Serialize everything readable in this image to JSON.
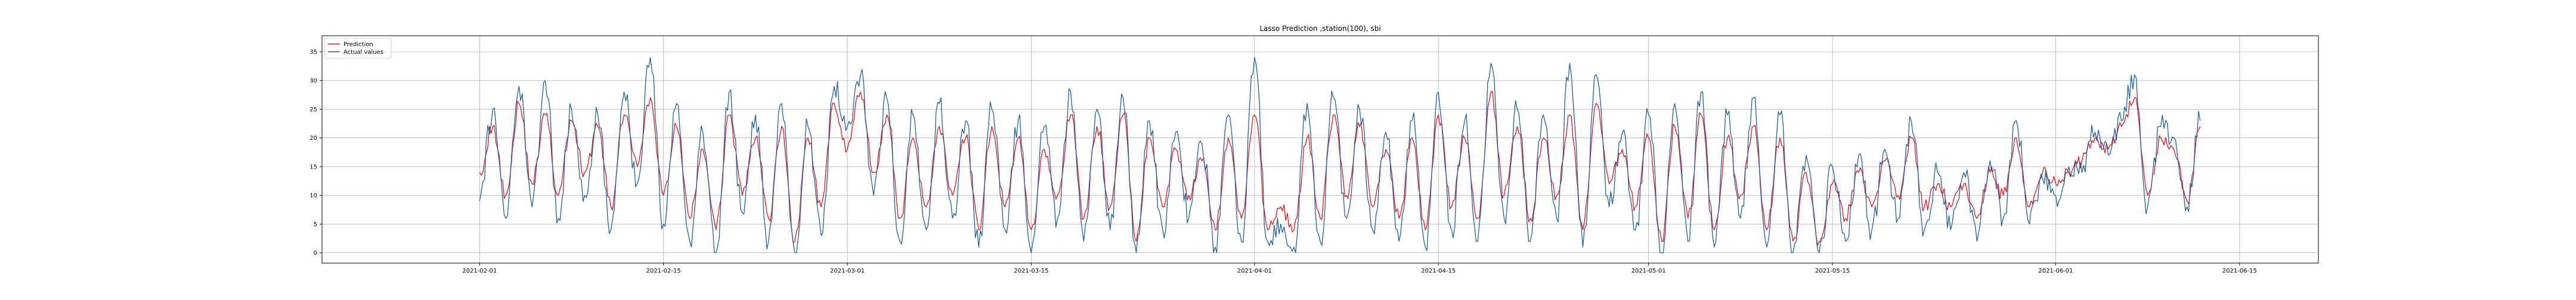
{
  "chart_data": {
    "type": "line",
    "title": "Lasso Prediction ,station(100), sbi",
    "xlabel": "",
    "ylabel": "",
    "x_range": [
      "2021-01-20",
      "2021-06-21"
    ],
    "x_ticks": [
      "2021-02-01",
      "2021-02-15",
      "2021-03-01",
      "2021-03-15",
      "2021-04-01",
      "2021-04-15",
      "2021-05-01",
      "2021-05-15",
      "2021-06-01",
      "2021-06-15"
    ],
    "ylim": [
      -1.8,
      37.8
    ],
    "y_ticks": [
      0,
      5,
      10,
      15,
      20,
      25,
      30,
      35
    ],
    "grid": true,
    "legend_position": "upper-left",
    "series": [
      {
        "name": "Prediction",
        "color": "#e8141b",
        "values": [
          [
            "2021-02-01",
            14
          ],
          [
            "2021-02-02",
            22
          ],
          [
            "2021-02-03",
            10
          ],
          [
            "2021-02-04",
            26
          ],
          [
            "2021-02-05",
            12
          ],
          [
            "2021-02-06",
            24
          ],
          [
            "2021-02-07",
            10
          ],
          [
            "2021-02-08",
            23
          ],
          [
            "2021-02-09",
            14
          ],
          [
            "2021-02-10",
            22
          ],
          [
            "2021-02-11",
            8
          ],
          [
            "2021-02-12",
            24
          ],
          [
            "2021-02-13",
            15
          ],
          [
            "2021-02-14",
            27
          ],
          [
            "2021-02-15",
            10
          ],
          [
            "2021-02-16",
            22
          ],
          [
            "2021-02-17",
            6
          ],
          [
            "2021-02-18",
            18
          ],
          [
            "2021-02-19",
            4
          ],
          [
            "2021-02-20",
            24
          ],
          [
            "2021-02-21",
            10
          ],
          [
            "2021-02-22",
            20
          ],
          [
            "2021-02-23",
            6
          ],
          [
            "2021-02-24",
            22
          ],
          [
            "2021-02-25",
            2
          ],
          [
            "2021-02-26",
            20
          ],
          [
            "2021-02-27",
            8
          ],
          [
            "2021-02-28",
            26
          ],
          [
            "2021-03-01",
            18
          ],
          [
            "2021-03-02",
            28
          ],
          [
            "2021-03-03",
            14
          ],
          [
            "2021-03-04",
            24
          ],
          [
            "2021-03-05",
            6
          ],
          [
            "2021-03-06",
            20
          ],
          [
            "2021-03-07",
            8
          ],
          [
            "2021-03-08",
            22
          ],
          [
            "2021-03-09",
            10
          ],
          [
            "2021-03-10",
            20
          ],
          [
            "2021-03-11",
            4
          ],
          [
            "2021-03-12",
            22
          ],
          [
            "2021-03-13",
            8
          ],
          [
            "2021-03-14",
            20
          ],
          [
            "2021-03-15",
            4
          ],
          [
            "2021-03-16",
            18
          ],
          [
            "2021-03-17",
            10
          ],
          [
            "2021-03-18",
            24
          ],
          [
            "2021-03-19",
            6
          ],
          [
            "2021-03-20",
            22
          ],
          [
            "2021-03-21",
            8
          ],
          [
            "2021-03-22",
            24
          ],
          [
            "2021-03-23",
            2
          ],
          [
            "2021-03-24",
            20
          ],
          [
            "2021-03-25",
            8
          ],
          [
            "2021-03-26",
            18
          ],
          [
            "2021-03-27",
            10
          ],
          [
            "2021-03-28",
            16
          ],
          [
            "2021-03-29",
            4
          ],
          [
            "2021-03-30",
            20
          ],
          [
            "2021-03-31",
            6
          ],
          [
            "2021-04-01",
            24
          ],
          [
            "2021-04-02",
            4
          ],
          [
            "2021-04-03",
            8
          ],
          [
            "2021-04-04",
            4
          ],
          [
            "2021-04-05",
            20
          ],
          [
            "2021-04-06",
            6
          ],
          [
            "2021-04-07",
            24
          ],
          [
            "2021-04-08",
            10
          ],
          [
            "2021-04-09",
            22
          ],
          [
            "2021-04-10",
            8
          ],
          [
            "2021-04-11",
            18
          ],
          [
            "2021-04-12",
            6
          ],
          [
            "2021-04-13",
            20
          ],
          [
            "2021-04-14",
            4
          ],
          [
            "2021-04-15",
            24
          ],
          [
            "2021-04-16",
            8
          ],
          [
            "2021-04-17",
            20
          ],
          [
            "2021-04-18",
            6
          ],
          [
            "2021-04-19",
            28
          ],
          [
            "2021-04-20",
            10
          ],
          [
            "2021-04-21",
            22
          ],
          [
            "2021-04-22",
            6
          ],
          [
            "2021-04-23",
            20
          ],
          [
            "2021-04-24",
            10
          ],
          [
            "2021-04-25",
            24
          ],
          [
            "2021-04-26",
            4
          ],
          [
            "2021-04-27",
            26
          ],
          [
            "2021-04-28",
            12
          ],
          [
            "2021-04-29",
            18
          ],
          [
            "2021-04-30",
            8
          ],
          [
            "2021-05-01",
            20
          ],
          [
            "2021-05-02",
            2
          ],
          [
            "2021-05-03",
            22
          ],
          [
            "2021-05-04",
            6
          ],
          [
            "2021-05-05",
            24
          ],
          [
            "2021-05-06",
            4
          ],
          [
            "2021-05-07",
            20
          ],
          [
            "2021-05-08",
            10
          ],
          [
            "2021-05-09",
            22
          ],
          [
            "2021-05-10",
            4
          ],
          [
            "2021-05-11",
            20
          ],
          [
            "2021-05-12",
            2
          ],
          [
            "2021-05-13",
            14
          ],
          [
            "2021-05-14",
            2
          ],
          [
            "2021-05-15",
            12
          ],
          [
            "2021-05-16",
            6
          ],
          [
            "2021-05-17",
            14
          ],
          [
            "2021-05-18",
            8
          ],
          [
            "2021-05-19",
            16
          ],
          [
            "2021-05-20",
            10
          ],
          [
            "2021-05-21",
            20
          ],
          [
            "2021-05-22",
            8
          ],
          [
            "2021-05-23",
            12
          ],
          [
            "2021-05-24",
            8
          ],
          [
            "2021-05-25",
            12
          ],
          [
            "2021-05-26",
            6
          ],
          [
            "2021-05-27",
            14
          ],
          [
            "2021-05-28",
            10
          ],
          [
            "2021-05-29",
            20
          ],
          [
            "2021-05-30",
            8
          ],
          [
            "2021-05-31",
            14
          ],
          [
            "2021-06-01",
            12
          ],
          [
            "2021-06-02",
            14
          ],
          [
            "2021-06-03",
            16
          ],
          [
            "2021-06-04",
            20
          ],
          [
            "2021-06-05",
            18
          ],
          [
            "2021-06-06",
            22
          ],
          [
            "2021-06-07",
            27
          ],
          [
            "2021-06-08",
            10
          ],
          [
            "2021-06-09",
            20
          ],
          [
            "2021-06-10",
            18
          ],
          [
            "2021-06-11",
            9
          ],
          [
            "2021-06-12",
            22
          ]
        ]
      },
      {
        "name": "Actual values",
        "color": "#1f5fa0",
        "values": [
          [
            "2021-02-01",
            9
          ],
          [
            "2021-02-02",
            25
          ],
          [
            "2021-02-03",
            6
          ],
          [
            "2021-02-04",
            29
          ],
          [
            "2021-02-05",
            8
          ],
          [
            "2021-02-06",
            30
          ],
          [
            "2021-02-07",
            6
          ],
          [
            "2021-02-08",
            25
          ],
          [
            "2021-02-09",
            10
          ],
          [
            "2021-02-10",
            24
          ],
          [
            "2021-02-11",
            4
          ],
          [
            "2021-02-12",
            28
          ],
          [
            "2021-02-13",
            12
          ],
          [
            "2021-02-14",
            34
          ],
          [
            "2021-02-15",
            5
          ],
          [
            "2021-02-16",
            26
          ],
          [
            "2021-02-17",
            2
          ],
          [
            "2021-02-18",
            21
          ],
          [
            "2021-02-19",
            0
          ],
          [
            "2021-02-20",
            28
          ],
          [
            "2021-02-21",
            7
          ],
          [
            "2021-02-22",
            24
          ],
          [
            "2021-02-23",
            2
          ],
          [
            "2021-02-24",
            26
          ],
          [
            "2021-02-25",
            0
          ],
          [
            "2021-02-26",
            22
          ],
          [
            "2021-02-27",
            3
          ],
          [
            "2021-02-28",
            29
          ],
          [
            "2021-03-01",
            22
          ],
          [
            "2021-03-02",
            31
          ],
          [
            "2021-03-03",
            10
          ],
          [
            "2021-03-04",
            27
          ],
          [
            "2021-03-05",
            2
          ],
          [
            "2021-03-06",
            24
          ],
          [
            "2021-03-07",
            4
          ],
          [
            "2021-03-08",
            26
          ],
          [
            "2021-03-09",
            6
          ],
          [
            "2021-03-10",
            23
          ],
          [
            "2021-03-11",
            1
          ],
          [
            "2021-03-12",
            25
          ],
          [
            "2021-03-13",
            4
          ],
          [
            "2021-03-14",
            23
          ],
          [
            "2021-03-15",
            0
          ],
          [
            "2021-03-16",
            22
          ],
          [
            "2021-03-17",
            6
          ],
          [
            "2021-03-18",
            28
          ],
          [
            "2021-03-19",
            2
          ],
          [
            "2021-03-20",
            25
          ],
          [
            "2021-03-21",
            4
          ],
          [
            "2021-03-22",
            27
          ],
          [
            "2021-03-23",
            0
          ],
          [
            "2021-03-24",
            23
          ],
          [
            "2021-03-25",
            4
          ],
          [
            "2021-03-26",
            21
          ],
          [
            "2021-03-27",
            6
          ],
          [
            "2021-03-28",
            19
          ],
          [
            "2021-03-29",
            1
          ],
          [
            "2021-03-30",
            24
          ],
          [
            "2021-03-31",
            2
          ],
          [
            "2021-04-01",
            34
          ],
          [
            "2021-04-02",
            2
          ],
          [
            "2021-04-03",
            5
          ],
          [
            "2021-04-04",
            1
          ],
          [
            "2021-04-05",
            26
          ],
          [
            "2021-04-06",
            2
          ],
          [
            "2021-04-07",
            27
          ],
          [
            "2021-04-08",
            6
          ],
          [
            "2021-04-09",
            25
          ],
          [
            "2021-04-10",
            4
          ],
          [
            "2021-04-11",
            21
          ],
          [
            "2021-04-12",
            2
          ],
          [
            "2021-04-13",
            23
          ],
          [
            "2021-04-14",
            1
          ],
          [
            "2021-04-15",
            28
          ],
          [
            "2021-04-16",
            4
          ],
          [
            "2021-04-17",
            23
          ],
          [
            "2021-04-18",
            2
          ],
          [
            "2021-04-19",
            33
          ],
          [
            "2021-04-20",
            6
          ],
          [
            "2021-04-21",
            25
          ],
          [
            "2021-04-22",
            2
          ],
          [
            "2021-04-23",
            24
          ],
          [
            "2021-04-24",
            6
          ],
          [
            "2021-04-25",
            33
          ],
          [
            "2021-04-26",
            1
          ],
          [
            "2021-04-27",
            31
          ],
          [
            "2021-04-28",
            8
          ],
          [
            "2021-04-29",
            21
          ],
          [
            "2021-04-30",
            4
          ],
          [
            "2021-05-01",
            24
          ],
          [
            "2021-05-02",
            0
          ],
          [
            "2021-05-03",
            26
          ],
          [
            "2021-05-04",
            2
          ],
          [
            "2021-05-05",
            28
          ],
          [
            "2021-05-06",
            1
          ],
          [
            "2021-05-07",
            24
          ],
          [
            "2021-05-08",
            6
          ],
          [
            "2021-05-09",
            27
          ],
          [
            "2021-05-10",
            1
          ],
          [
            "2021-05-11",
            24
          ],
          [
            "2021-05-12",
            0
          ],
          [
            "2021-05-13",
            17
          ],
          [
            "2021-05-14",
            0
          ],
          [
            "2021-05-15",
            15
          ],
          [
            "2021-05-16",
            2
          ],
          [
            "2021-05-17",
            17
          ],
          [
            "2021-05-18",
            4
          ],
          [
            "2021-05-19",
            18
          ],
          [
            "2021-05-20",
            6
          ],
          [
            "2021-05-21",
            23
          ],
          [
            "2021-05-22",
            4
          ],
          [
            "2021-05-23",
            14
          ],
          [
            "2021-05-24",
            4
          ],
          [
            "2021-05-25",
            14
          ],
          [
            "2021-05-26",
            2
          ],
          [
            "2021-05-27",
            16
          ],
          [
            "2021-05-28",
            6
          ],
          [
            "2021-05-29",
            23
          ],
          [
            "2021-05-30",
            5
          ],
          [
            "2021-05-31",
            13
          ],
          [
            "2021-06-01",
            10
          ],
          [
            "2021-06-02",
            15
          ],
          [
            "2021-06-03",
            14
          ],
          [
            "2021-06-04",
            21
          ],
          [
            "2021-06-05",
            17
          ],
          [
            "2021-06-06",
            23
          ],
          [
            "2021-06-07",
            31
          ],
          [
            "2021-06-08",
            8
          ],
          [
            "2021-06-09",
            22
          ],
          [
            "2021-06-10",
            20
          ],
          [
            "2021-06-11",
            8
          ],
          [
            "2021-06-12",
            23
          ]
        ]
      }
    ]
  }
}
